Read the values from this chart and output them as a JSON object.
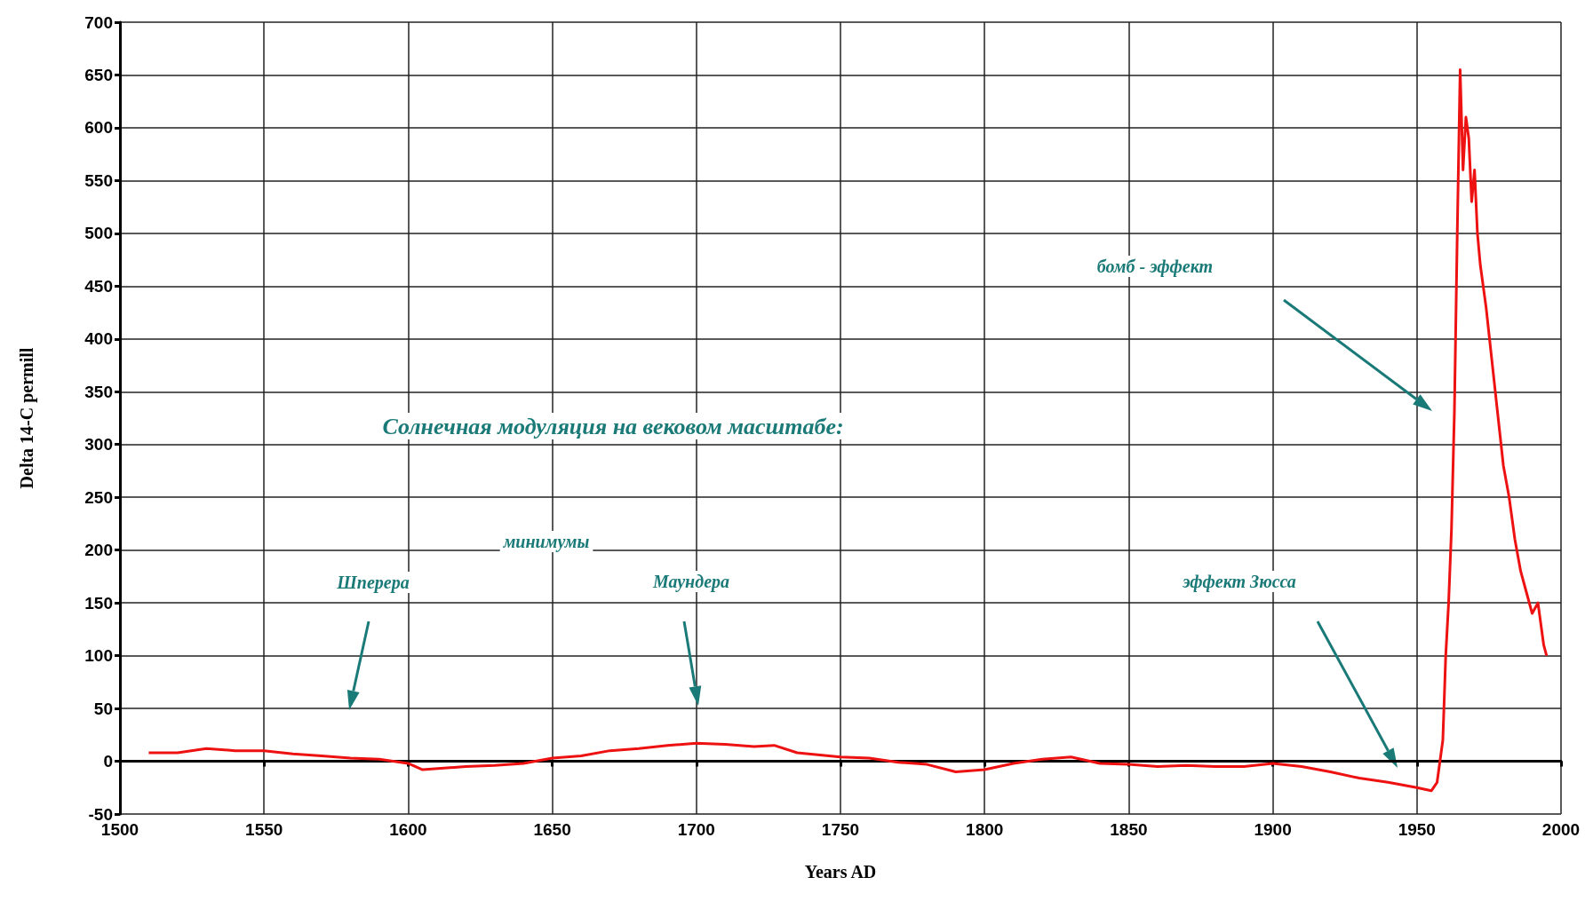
{
  "chart_data": {
    "type": "line",
    "xlabel": "Years AD",
    "ylabel": "Delta 14-C permill",
    "xlim": [
      1500,
      2000
    ],
    "xticks": [
      1500,
      1550,
      1600,
      1650,
      1700,
      1750,
      1800,
      1850,
      1900,
      1950,
      2000
    ],
    "ylim": [
      -50,
      700
    ],
    "yticks": [
      -50,
      0,
      50,
      100,
      150,
      200,
      250,
      300,
      350,
      400,
      450,
      500,
      550,
      600,
      650,
      700
    ],
    "grid": true,
    "marker": "none",
    "line_style": "solid",
    "series": [
      {
        "color": "#ee1111",
        "x": [
          1510,
          1520,
          1530,
          1540,
          1550,
          1560,
          1570,
          1580,
          1590,
          1600,
          1605,
          1620,
          1630,
          1640,
          1650,
          1660,
          1670,
          1680,
          1690,
          1700,
          1710,
          1720,
          1727,
          1735,
          1750,
          1760,
          1770,
          1780,
          1790,
          1800,
          1810,
          1820,
          1830,
          1840,
          1850,
          1860,
          1870,
          1880,
          1890,
          1900,
          1910,
          1920,
          1930,
          1940,
          1950,
          1955,
          1957,
          1959,
          1960,
          1961,
          1962,
          1963,
          1964,
          1965,
          1966,
          1967,
          1968,
          1969,
          1970,
          1971,
          1972,
          1974,
          1976,
          1978,
          1980,
          1982,
          1984,
          1986,
          1988,
          1990,
          1992,
          1994,
          1995
        ],
        "values": [
          8,
          8,
          12,
          10,
          10,
          7,
          5,
          3,
          2,
          -2,
          -8,
          -5,
          -4,
          -2,
          3,
          5,
          10,
          12,
          15,
          17,
          16,
          14,
          15,
          8,
          4,
          3,
          -1,
          -3,
          -10,
          -8,
          -2,
          2,
          4,
          -2,
          -3,
          -5,
          -4,
          -5,
          -5,
          -2,
          -5,
          -10,
          -16,
          -20,
          -25,
          -28,
          -20,
          20,
          100,
          150,
          220,
          330,
          500,
          655,
          560,
          610,
          590,
          530,
          560,
          500,
          470,
          430,
          380,
          330,
          280,
          250,
          210,
          180,
          160,
          140,
          150,
          110,
          100
        ]
      }
    ],
    "annotations": [
      "Солнечная модуляция на вековом масштабе:",
      "минимумы",
      "Шперера",
      "Маундера",
      "эффект Зюсса",
      "бомб - эффект"
    ]
  }
}
